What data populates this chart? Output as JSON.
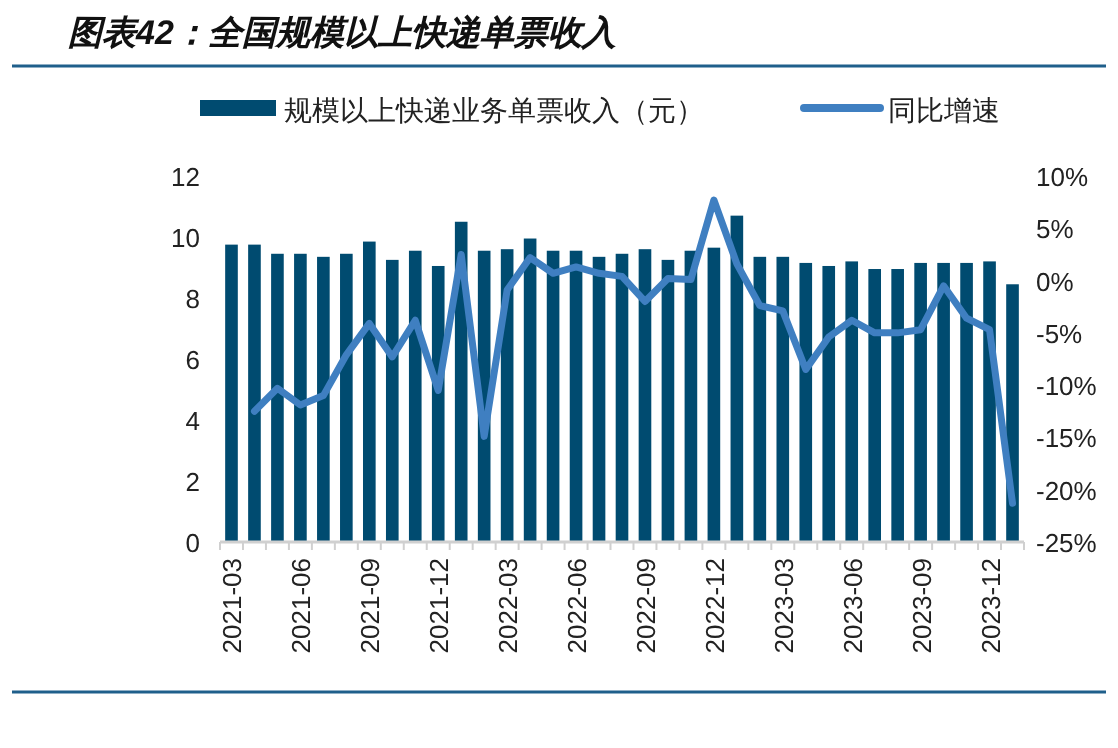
{
  "chart_data": {
    "type": "bar",
    "title": "图表42：全国规模以上快递单票收入",
    "categories": [
      "2021-03",
      null,
      null,
      "2021-06",
      null,
      null,
      "2021-09",
      null,
      null,
      "2021-12",
      null,
      null,
      "2022-03",
      null,
      null,
      "2022-06",
      null,
      null,
      "2022-09",
      null,
      null,
      "2022-12",
      null,
      null,
      "2023-03",
      null,
      null,
      "2023-06",
      null,
      null,
      "2023-09",
      null,
      null,
      "2023-12",
      null
    ],
    "series": [
      {
        "name": "规模以上快递业务单票收入（元）",
        "color": "#004b70",
        "values": [
          9.75,
          9.75,
          9.45,
          9.45,
          9.35,
          9.45,
          9.85,
          9.25,
          9.55,
          9.05,
          10.5,
          9.55,
          9.6,
          9.95,
          9.55,
          9.55,
          9.35,
          9.45,
          9.6,
          9.25,
          9.55,
          9.65,
          10.7,
          9.35,
          9.35,
          9.15,
          9.05,
          9.2,
          8.95,
          8.95,
          9.15,
          9.15,
          9.15,
          9.2,
          8.45
        ]
      },
      {
        "name": "同比增速",
        "type": "line",
        "axis": "y2",
        "color": "#3f7fc1",
        "values": [
          null,
          -12.5,
          -10.3,
          -11.9,
          -11.0,
          -7.1,
          -4.1,
          -7.3,
          -3.8,
          -10.5,
          2.5,
          -14.9,
          -0.9,
          2.2,
          0.7,
          1.3,
          0.7,
          0.4,
          -2.0,
          0.2,
          0.1,
          7.7,
          1.6,
          -2.4,
          -2.9,
          -8.5,
          -5.4,
          -3.8,
          -5.0,
          -5.0,
          -4.7,
          -0.5,
          -3.6,
          -4.7,
          -21.3
        ]
      }
    ],
    "ylim": [
      0,
      12
    ],
    "yticks": [
      0,
      2,
      4,
      6,
      8,
      10,
      12
    ],
    "y2lim": [
      -25,
      10
    ],
    "y2ticks": [
      {
        "value": -25,
        "label": "-25%"
      },
      {
        "value": -20,
        "label": "-20%"
      },
      {
        "value": -15,
        "label": "-15%"
      },
      {
        "value": -10,
        "label": "-10%"
      },
      {
        "value": -5,
        "label": "-5%"
      },
      {
        "value": 0,
        "label": "0%"
      },
      {
        "value": 5,
        "label": "5%"
      },
      {
        "value": 10,
        "label": "10%"
      }
    ],
    "legend": "top",
    "grid": false
  }
}
